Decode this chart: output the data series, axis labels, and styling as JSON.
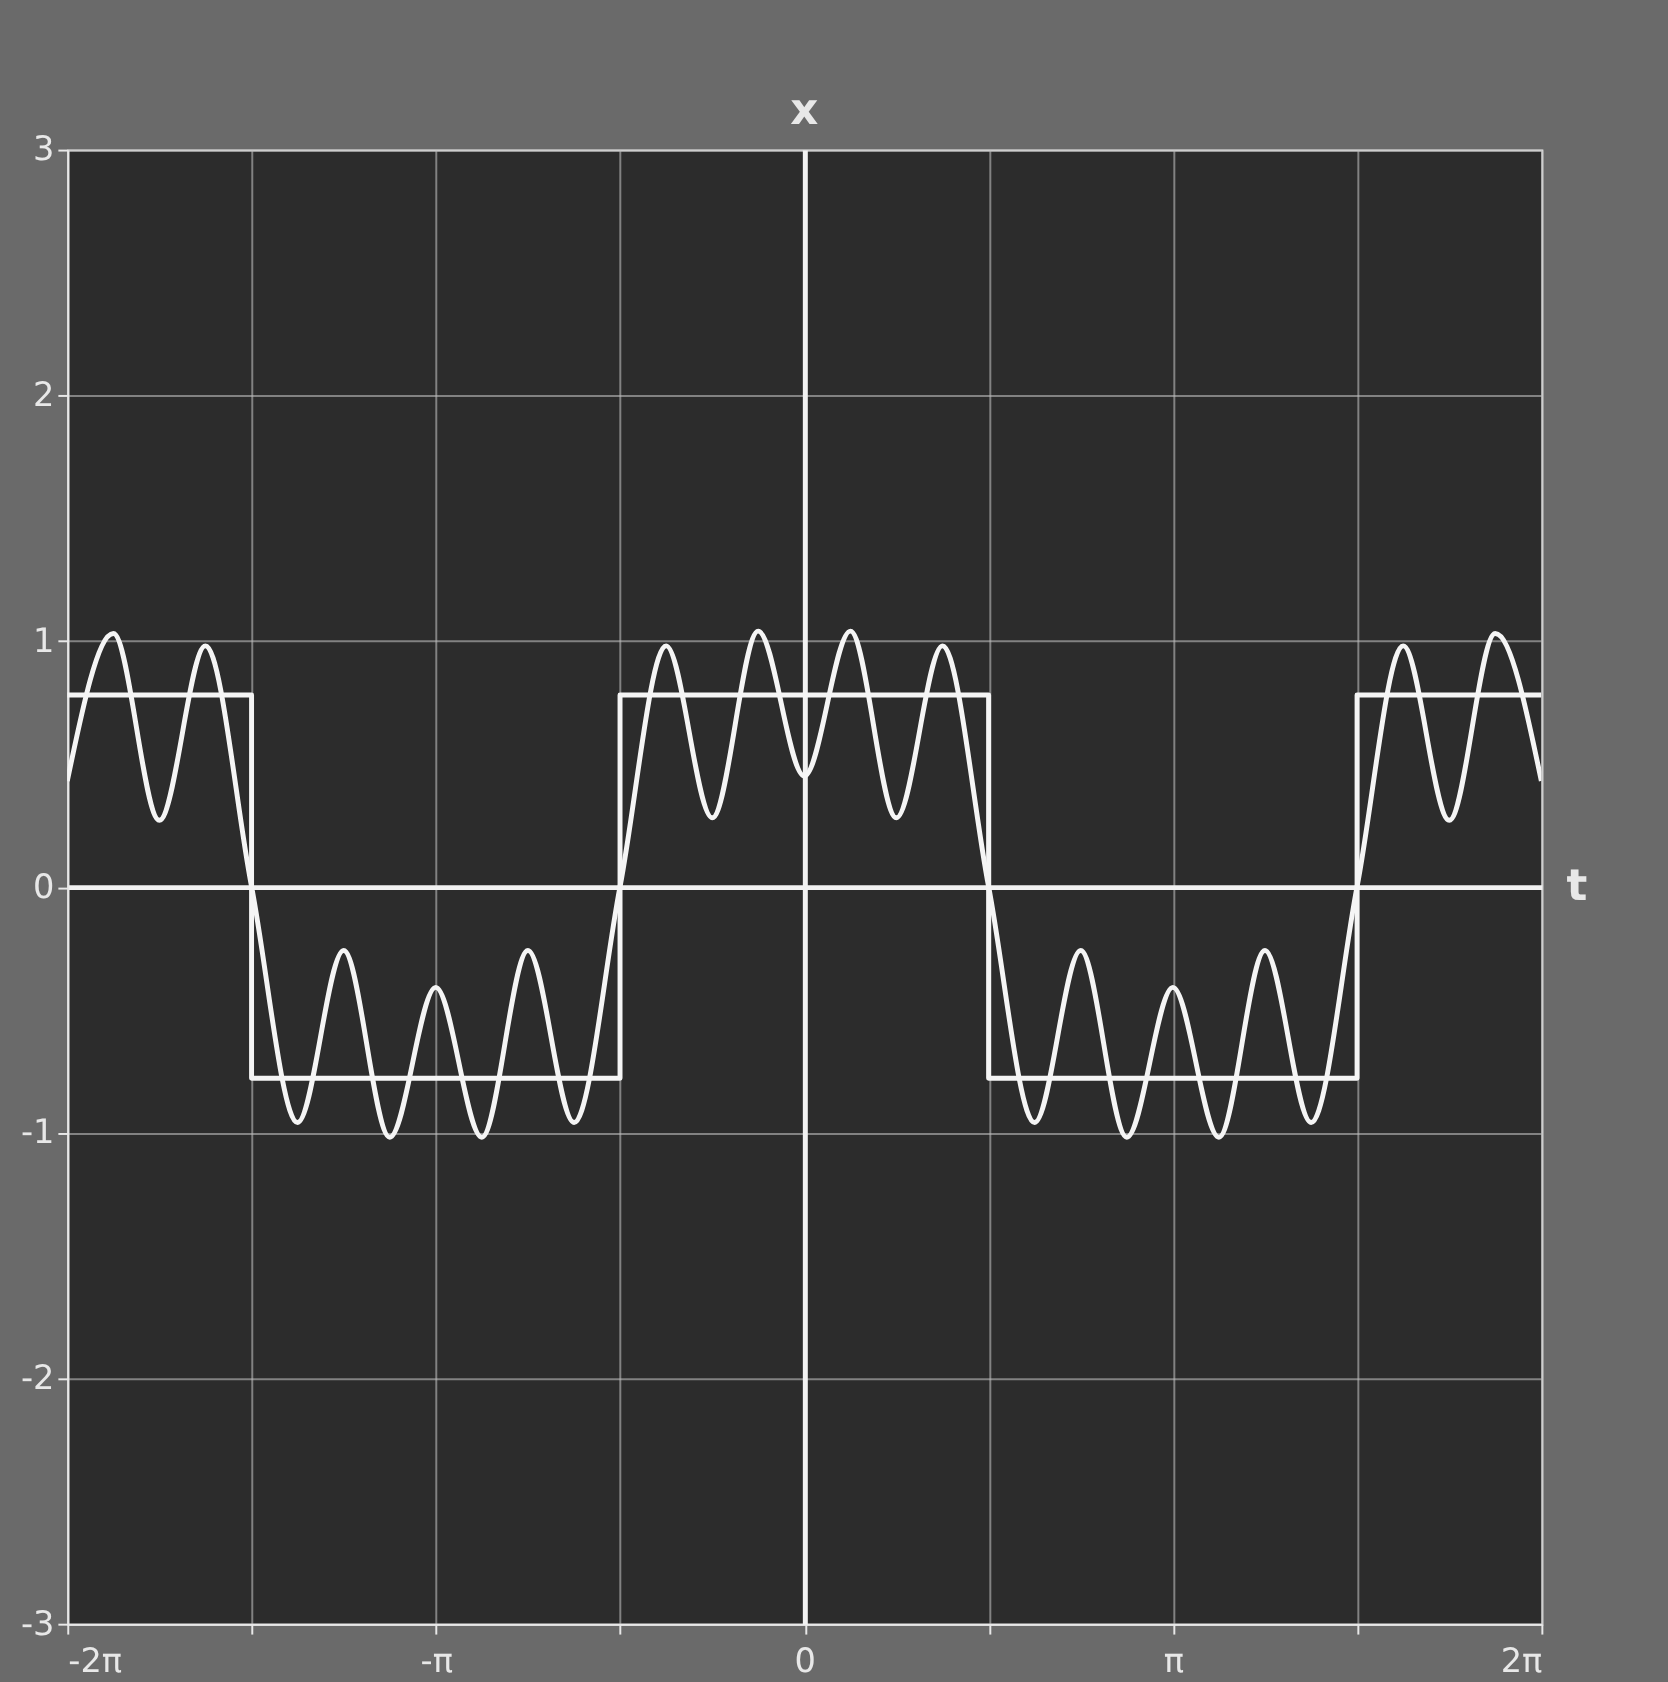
{
  "chart_data": {
    "type": "line",
    "xlabel": "t",
    "ylabel": "x",
    "xlim": [
      -6.283,
      6.283
    ],
    "ylim": [
      -3,
      3
    ],
    "xticks": [
      {
        "value": -6.283,
        "label": "-2π"
      },
      {
        "value": -4.712,
        "label": null
      },
      {
        "value": -3.142,
        "label": "-π"
      },
      {
        "value": -1.571,
        "label": null
      },
      0,
      {
        "value": 1.571,
        "label": null
      },
      {
        "value": 3.142,
        "label": "π"
      },
      {
        "value": 4.712,
        "label": null
      },
      {
        "value": 6.283,
        "label": "2π"
      }
    ],
    "yticks": [
      -3,
      -2,
      -1,
      0,
      1,
      2,
      3
    ],
    "grid": true,
    "marker": "none",
    "line_style": "solid",
    "series": [
      {
        "type": "step",
        "color": "#f5f5f5",
        "x": [
          -6.283,
          -4.712,
          -1.571,
          1.571,
          4.712,
          6.283
        ],
        "values": [
          0.78,
          -0.78,
          0.78,
          -0.78,
          0.78,
          0.78
        ]
      },
      {
        "color": "#f5f5f5",
        "x": [
          -6.283,
          -5.89,
          -5.498,
          -5.105,
          -4.712,
          -4.32,
          -3.927,
          -3.534,
          -3.142,
          -2.749,
          -2.356,
          -1.963,
          -1.571,
          -1.178,
          -0.785,
          -0.393,
          0,
          0.393,
          0.785,
          1.178,
          1.571,
          1.963,
          2.356,
          2.749,
          3.142,
          3.534,
          3.927,
          4.32,
          4.712,
          5.105,
          5.498,
          5.89,
          6.283
        ],
        "values": [
          0.43,
          1.03,
          0.27,
          0.98,
          0,
          -0.96,
          -0.26,
          -1.02,
          -0.41,
          -1.02,
          -0.26,
          -0.96,
          0,
          0.98,
          0.28,
          1.04,
          0.45,
          1.04,
          0.28,
          0.98,
          0,
          -0.96,
          -0.26,
          -1.02,
          -0.41,
          -1.02,
          -0.26,
          -0.96,
          0,
          0.98,
          0.27,
          1.03,
          0.43
        ]
      }
    ]
  }
}
